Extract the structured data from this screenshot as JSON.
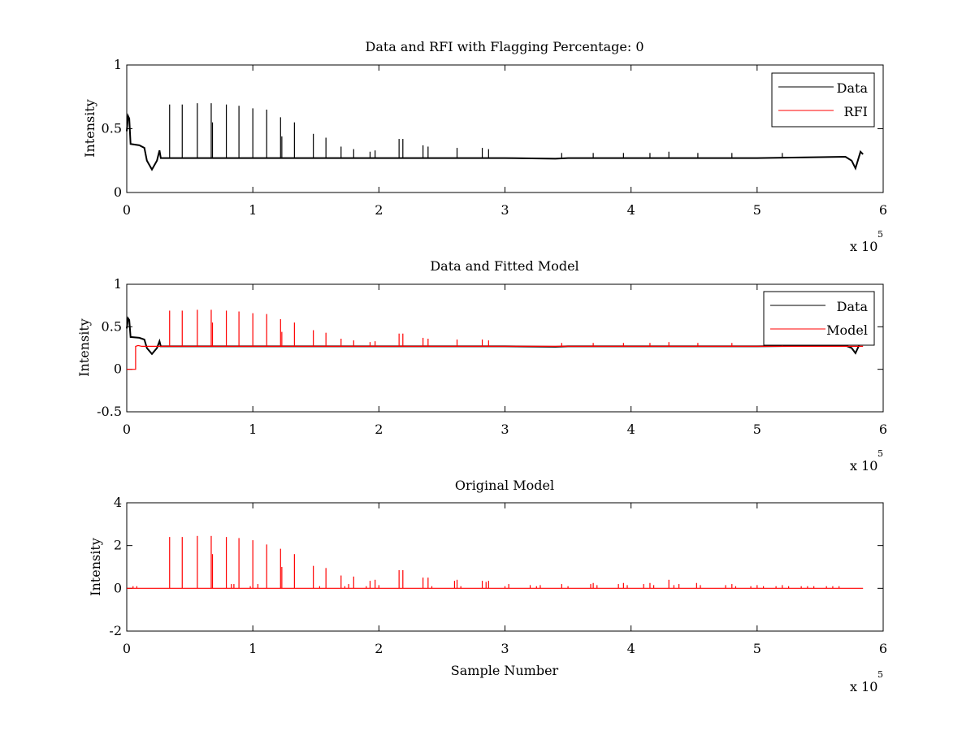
{
  "figure": {
    "exponent_label": "x 10",
    "exponent_power": "5"
  },
  "chart_data": [
    {
      "type": "line",
      "title": "Data and RFI with Flagging Percentage: 0",
      "xlabel": "",
      "ylabel": "Intensity",
      "xlim": [
        0,
        6
      ],
      "ylim": [
        0,
        1
      ],
      "x_scale_exponent": 5,
      "xticks": [
        "0",
        "1",
        "2",
        "3",
        "4",
        "5",
        "6"
      ],
      "yticks": [
        "0",
        "0.5",
        "1"
      ],
      "ytick_values": [
        0,
        0.5,
        1
      ],
      "legend": {
        "placement": "top-right",
        "entries": [
          "Data",
          "RFI"
        ]
      },
      "series": [
        {
          "name": "Data",
          "color": "#000000",
          "baseline": [
            [
              0.0,
              0.48
            ],
            [
              0.01,
              0.6
            ],
            [
              0.02,
              0.58
            ],
            [
              0.03,
              0.38
            ],
            [
              0.1,
              0.37
            ],
            [
              0.14,
              0.35
            ],
            [
              0.16,
              0.25
            ],
            [
              0.2,
              0.18
            ],
            [
              0.24,
              0.25
            ],
            [
              0.26,
              0.33
            ],
            [
              0.27,
              0.27
            ],
            [
              1.0,
              0.27
            ],
            [
              2.0,
              0.27
            ],
            [
              3.0,
              0.27
            ],
            [
              3.4,
              0.265
            ],
            [
              3.5,
              0.27
            ],
            [
              4.0,
              0.27
            ],
            [
              5.0,
              0.27
            ],
            [
              5.7,
              0.28
            ],
            [
              5.75,
              0.25
            ],
            [
              5.78,
              0.19
            ],
            [
              5.82,
              0.32
            ],
            [
              5.84,
              0.3
            ]
          ],
          "spikes": [
            [
              0.34,
              0.69
            ],
            [
              0.44,
              0.69
            ],
            [
              0.56,
              0.7
            ],
            [
              0.67,
              0.7
            ],
            [
              0.68,
              0.55
            ],
            [
              0.79,
              0.69
            ],
            [
              0.89,
              0.68
            ],
            [
              1.0,
              0.66
            ],
            [
              1.11,
              0.65
            ],
            [
              1.22,
              0.59
            ],
            [
              1.23,
              0.44
            ],
            [
              1.33,
              0.55
            ],
            [
              1.48,
              0.46
            ],
            [
              1.58,
              0.43
            ],
            [
              1.7,
              0.36
            ],
            [
              1.8,
              0.34
            ],
            [
              1.93,
              0.32
            ],
            [
              1.97,
              0.33
            ],
            [
              2.16,
              0.42
            ],
            [
              2.19,
              0.42
            ],
            [
              2.35,
              0.37
            ],
            [
              2.39,
              0.36
            ],
            [
              2.62,
              0.35
            ],
            [
              2.82,
              0.35
            ],
            [
              2.87,
              0.34
            ],
            [
              3.45,
              0.31
            ],
            [
              3.7,
              0.31
            ],
            [
              3.94,
              0.31
            ],
            [
              4.15,
              0.31
            ],
            [
              4.3,
              0.32
            ],
            [
              4.53,
              0.31
            ],
            [
              4.8,
              0.31
            ],
            [
              5.2,
              0.31
            ]
          ]
        },
        {
          "name": "RFI",
          "color": "#ff0000",
          "values": []
        }
      ]
    },
    {
      "type": "line",
      "title": "Data and Fitted Model",
      "xlabel": "",
      "ylabel": "Intensity",
      "xlim": [
        0,
        6
      ],
      "ylim": [
        -0.5,
        1
      ],
      "x_scale_exponent": 5,
      "xticks": [
        "0",
        "1",
        "2",
        "3",
        "4",
        "5",
        "6"
      ],
      "yticks": [
        "-0.5",
        "0",
        "0.5",
        "1"
      ],
      "ytick_values": [
        -0.5,
        0,
        0.5,
        1
      ],
      "legend": {
        "placement": "top-right",
        "entries": [
          "Data",
          "Model"
        ]
      },
      "series": [
        {
          "name": "Data",
          "color": "#000000",
          "baseline": [
            [
              0.0,
              0.48
            ],
            [
              0.01,
              0.6
            ],
            [
              0.02,
              0.58
            ],
            [
              0.03,
              0.38
            ],
            [
              0.1,
              0.37
            ],
            [
              0.14,
              0.35
            ],
            [
              0.16,
              0.25
            ],
            [
              0.2,
              0.18
            ],
            [
              0.24,
              0.25
            ],
            [
              0.26,
              0.33
            ],
            [
              0.27,
              0.27
            ],
            [
              1.0,
              0.27
            ],
            [
              2.0,
              0.27
            ],
            [
              3.0,
              0.27
            ],
            [
              3.4,
              0.265
            ],
            [
              3.5,
              0.27
            ],
            [
              4.0,
              0.27
            ],
            [
              5.0,
              0.27
            ],
            [
              5.7,
              0.28
            ],
            [
              5.75,
              0.25
            ],
            [
              5.78,
              0.19
            ],
            [
              5.82,
              0.32
            ],
            [
              5.84,
              0.3
            ]
          ],
          "spikes": []
        },
        {
          "name": "Model",
          "color": "#ff0000",
          "baseline": [
            [
              0.0,
              0.0
            ],
            [
              0.07,
              0.0
            ],
            [
              0.07,
              0.27
            ],
            [
              0.09,
              0.28
            ],
            [
              0.12,
              0.27
            ],
            [
              5.84,
              0.27
            ]
          ],
          "spikes": [
            [
              0.34,
              0.69
            ],
            [
              0.44,
              0.69
            ],
            [
              0.56,
              0.7
            ],
            [
              0.67,
              0.7
            ],
            [
              0.68,
              0.55
            ],
            [
              0.79,
              0.69
            ],
            [
              0.89,
              0.68
            ],
            [
              1.0,
              0.66
            ],
            [
              1.11,
              0.65
            ],
            [
              1.22,
              0.59
            ],
            [
              1.23,
              0.44
            ],
            [
              1.33,
              0.55
            ],
            [
              1.48,
              0.46
            ],
            [
              1.58,
              0.43
            ],
            [
              1.7,
              0.36
            ],
            [
              1.8,
              0.34
            ],
            [
              1.93,
              0.32
            ],
            [
              1.97,
              0.33
            ],
            [
              2.16,
              0.42
            ],
            [
              2.19,
              0.42
            ],
            [
              2.35,
              0.37
            ],
            [
              2.39,
              0.36
            ],
            [
              2.62,
              0.35
            ],
            [
              2.82,
              0.35
            ],
            [
              2.87,
              0.34
            ],
            [
              3.45,
              0.31
            ],
            [
              3.7,
              0.31
            ],
            [
              3.94,
              0.31
            ],
            [
              4.15,
              0.31
            ],
            [
              4.3,
              0.32
            ],
            [
              4.53,
              0.31
            ],
            [
              4.8,
              0.31
            ],
            [
              5.2,
              0.31
            ]
          ]
        }
      ]
    },
    {
      "type": "line",
      "title": "Original Model",
      "xlabel": "Sample Number",
      "ylabel": "Intensity",
      "xlim": [
        0,
        6
      ],
      "ylim": [
        -2,
        4
      ],
      "x_scale_exponent": 5,
      "xticks": [
        "0",
        "1",
        "2",
        "3",
        "4",
        "5",
        "6"
      ],
      "yticks": [
        "-2",
        "0",
        "2",
        "4"
      ],
      "ytick_values": [
        -2,
        0,
        2,
        4
      ],
      "legend": null,
      "series": [
        {
          "name": "",
          "color": "#ff0000",
          "baseline": [
            [
              0.0,
              0.0
            ],
            [
              5.84,
              0.0
            ]
          ],
          "spikes": [
            [
              0.05,
              0.1
            ],
            [
              0.08,
              0.1
            ],
            [
              0.34,
              2.4
            ],
            [
              0.44,
              2.4
            ],
            [
              0.56,
              2.45
            ],
            [
              0.67,
              2.45
            ],
            [
              0.68,
              1.6
            ],
            [
              0.79,
              2.4
            ],
            [
              0.83,
              0.2
            ],
            [
              0.85,
              0.2
            ],
            [
              0.89,
              2.35
            ],
            [
              0.98,
              0.1
            ],
            [
              1.0,
              2.25
            ],
            [
              1.04,
              0.2
            ],
            [
              1.11,
              2.05
            ],
            [
              1.22,
              1.85
            ],
            [
              1.23,
              1.0
            ],
            [
              1.33,
              1.6
            ],
            [
              1.48,
              1.05
            ],
            [
              1.53,
              0.1
            ],
            [
              1.58,
              0.95
            ],
            [
              1.7,
              0.6
            ],
            [
              1.73,
              0.1
            ],
            [
              1.76,
              0.2
            ],
            [
              1.8,
              0.55
            ],
            [
              1.9,
              0.1
            ],
            [
              1.93,
              0.35
            ],
            [
              1.97,
              0.4
            ],
            [
              2.0,
              0.15
            ],
            [
              2.16,
              0.85
            ],
            [
              2.19,
              0.85
            ],
            [
              2.35,
              0.5
            ],
            [
              2.39,
              0.5
            ],
            [
              2.42,
              0.1
            ],
            [
              2.6,
              0.35
            ],
            [
              2.62,
              0.4
            ],
            [
              2.65,
              0.1
            ],
            [
              2.82,
              0.35
            ],
            [
              2.85,
              0.3
            ],
            [
              2.87,
              0.35
            ],
            [
              3.0,
              0.1
            ],
            [
              3.03,
              0.2
            ],
            [
              3.2,
              0.15
            ],
            [
              3.25,
              0.1
            ],
            [
              3.28,
              0.15
            ],
            [
              3.45,
              0.2
            ],
            [
              3.5,
              0.1
            ],
            [
              3.68,
              0.2
            ],
            [
              3.7,
              0.25
            ],
            [
              3.73,
              0.15
            ],
            [
              3.9,
              0.2
            ],
            [
              3.94,
              0.25
            ],
            [
              3.97,
              0.15
            ],
            [
              4.1,
              0.2
            ],
            [
              4.15,
              0.25
            ],
            [
              4.18,
              0.15
            ],
            [
              4.3,
              0.4
            ],
            [
              4.34,
              0.15
            ],
            [
              4.38,
              0.2
            ],
            [
              4.52,
              0.25
            ],
            [
              4.55,
              0.15
            ],
            [
              4.75,
              0.15
            ],
            [
              4.8,
              0.2
            ],
            [
              4.83,
              0.1
            ],
            [
              4.95,
              0.1
            ],
            [
              5.0,
              0.15
            ],
            [
              5.05,
              0.1
            ],
            [
              5.15,
              0.1
            ],
            [
              5.2,
              0.15
            ],
            [
              5.25,
              0.1
            ],
            [
              5.35,
              0.1
            ],
            [
              5.4,
              0.1
            ],
            [
              5.45,
              0.1
            ],
            [
              5.55,
              0.1
            ],
            [
              5.6,
              0.1
            ],
            [
              5.65,
              0.1
            ]
          ]
        }
      ]
    }
  ]
}
